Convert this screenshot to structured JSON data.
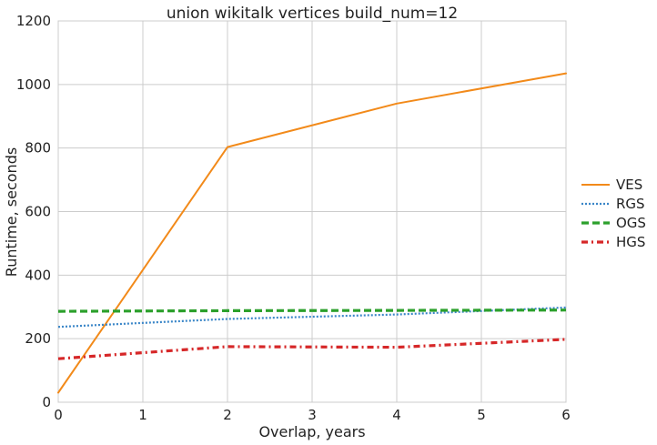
{
  "chart_data": {
    "type": "line",
    "title": "union wikitalk vertices build_num=12",
    "xlabel": "Overlap, years",
    "ylabel": "Runtime, seconds",
    "xlim": [
      0,
      6
    ],
    "ylim": [
      0,
      1200
    ],
    "xticks": [
      "0",
      "1",
      "2",
      "3",
      "4",
      "5",
      "6"
    ],
    "yticks": [
      "0",
      "200",
      "400",
      "600",
      "800",
      "1000",
      "1200"
    ],
    "grid": true,
    "legend_position": "right",
    "series": [
      {
        "name": "VES",
        "color": "#f28a1a",
        "style": "solid",
        "x": [
          0,
          2,
          4,
          6
        ],
        "y": [
          30,
          803,
          940,
          1035
        ]
      },
      {
        "name": "RGS",
        "color": "#3a86c8",
        "style": "dotted",
        "x": [
          0,
          2,
          4,
          6
        ],
        "y": [
          237,
          262,
          276,
          298
        ]
      },
      {
        "name": "OGS",
        "color": "#2ca02c",
        "style": "dashed",
        "x": [
          0,
          2,
          4,
          6
        ],
        "y": [
          286,
          288,
          289,
          290
        ]
      },
      {
        "name": "HGS",
        "color": "#d62728",
        "style": "dashdot",
        "x": [
          0,
          2,
          4,
          6
        ],
        "y": [
          137,
          175,
          173,
          198
        ]
      }
    ]
  }
}
